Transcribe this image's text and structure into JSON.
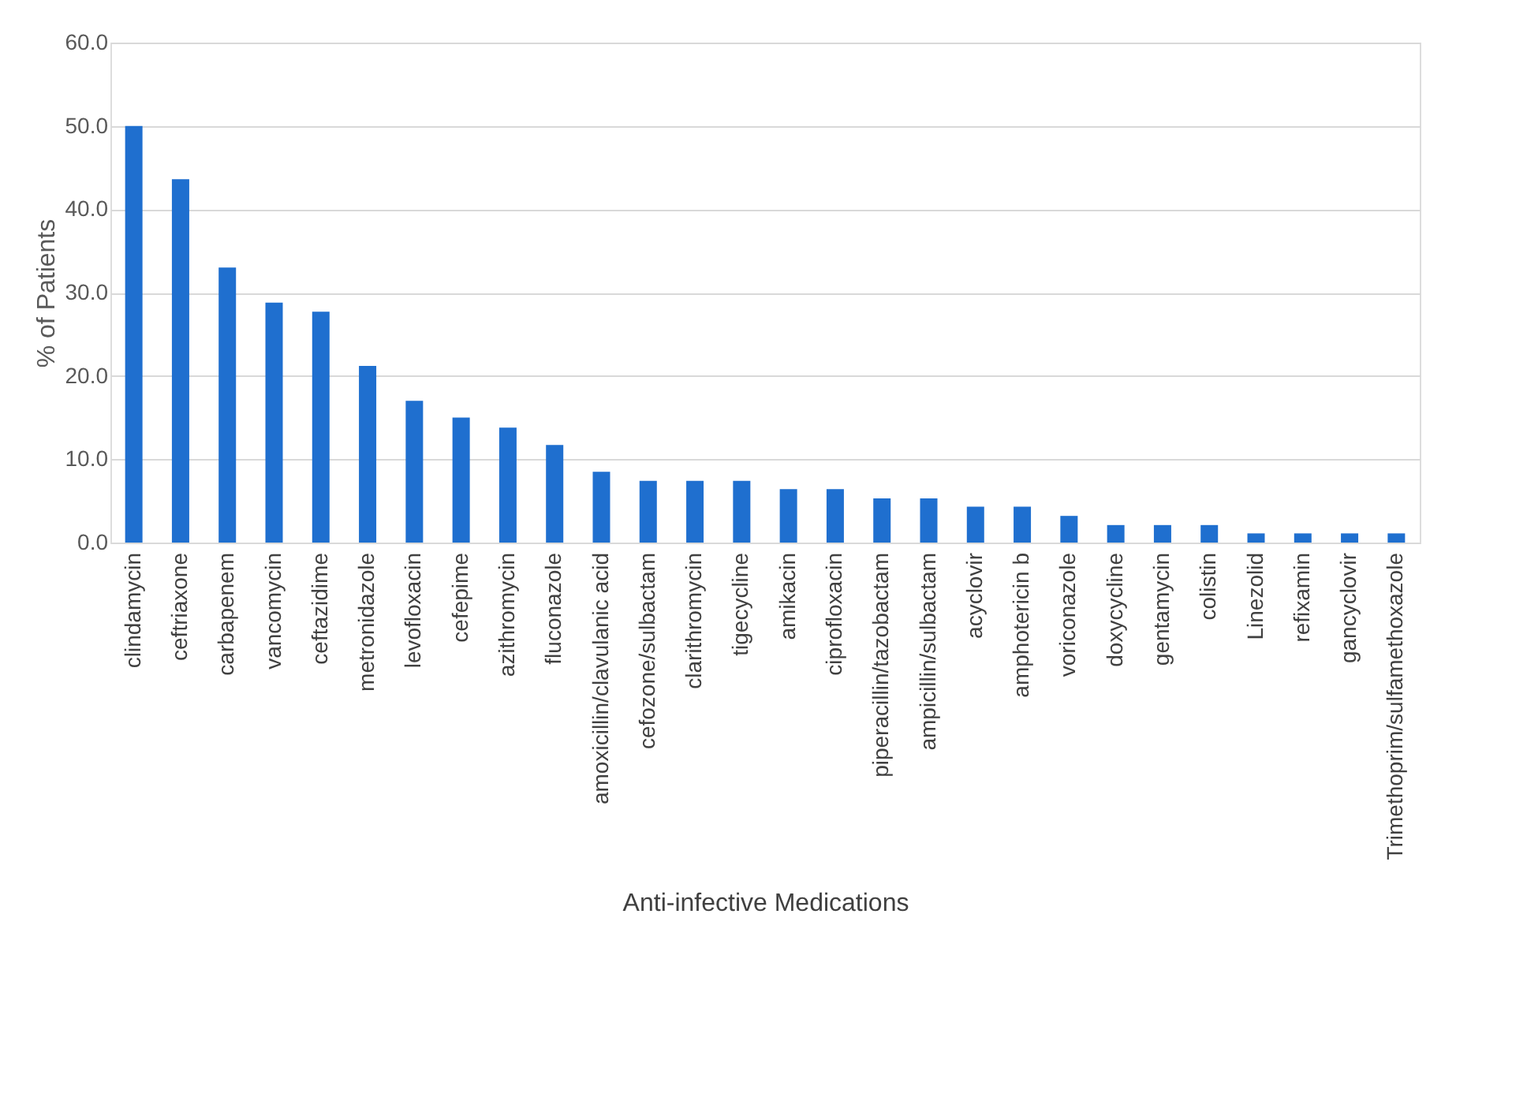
{
  "chart_data": {
    "type": "bar",
    "xlabel": "Anti-infective Medications",
    "ylabel": "% of Patients",
    "categories": [
      "clindamycin",
      "ceftriaxone",
      "carbapenem",
      "vancomycin",
      "ceftazidime",
      "metronidazole",
      "levofloxacin",
      "cefepime",
      "azithromycin",
      "fluconazole",
      "amoxicillin/clavulanic acid",
      "cefozone/sulbactam",
      "clarithromycin",
      "tigecycline",
      "amikacin",
      "ciprofloxacin",
      "piperacillin/tazobactam",
      "ampicillin/sulbactam",
      "acyclovir",
      "amphotericin b",
      "voriconazole",
      "doxycycline",
      "gentamycin",
      "colistin",
      "Linezolid",
      "refixamin",
      "gancyclovir",
      "Trimethoprim/sulfamethoxazole"
    ],
    "values": [
      50.0,
      43.6,
      33.0,
      28.8,
      27.7,
      21.2,
      17.0,
      15.0,
      13.8,
      11.7,
      8.5,
      7.4,
      7.4,
      7.4,
      6.4,
      6.4,
      5.3,
      5.3,
      4.3,
      4.3,
      3.2,
      2.1,
      2.1,
      2.1,
      1.1,
      1.1,
      1.1,
      1.1
    ],
    "color": "#1f6fcf",
    "ylim": [
      0,
      60
    ],
    "yticks": [
      {
        "value": 0,
        "label": "0.0"
      },
      {
        "value": 10,
        "label": "10.0"
      },
      {
        "value": 20,
        "label": "20.0"
      },
      {
        "value": 30,
        "label": "30.0"
      },
      {
        "value": 40,
        "label": "40.0"
      },
      {
        "value": 50,
        "label": "50.0"
      },
      {
        "value": 60,
        "label": "60.0"
      }
    ],
    "grid": "y",
    "legend": false
  }
}
